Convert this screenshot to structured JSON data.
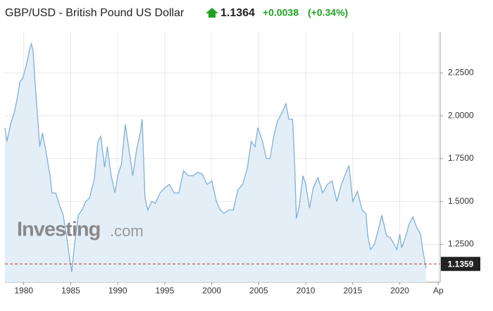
{
  "header": {
    "title": "GBP/USD - British Pound US Dollar",
    "price": "1.1364",
    "change": "+0.0038",
    "change_pct": "(+0.34%)"
  },
  "watermark": {
    "brand": "Investing",
    "suffix": ".com"
  },
  "chart_data": {
    "type": "line",
    "color": "#7fb0d8",
    "fill": "#e4eef7",
    "x": [
      1978.0,
      1978.2,
      1978.6,
      1979.0,
      1979.3,
      1979.6,
      1979.9,
      1980.3,
      1980.6,
      1980.8,
      1981.0,
      1981.2,
      1981.4,
      1981.7,
      1982.0,
      1982.4,
      1982.8,
      1983.0,
      1983.4,
      1983.8,
      1984.2,
      1984.6,
      1984.9,
      1985.1,
      1985.4,
      1985.8,
      1986.2,
      1986.6,
      1987.0,
      1987.5,
      1987.9,
      1988.2,
      1988.6,
      1988.9,
      1989.3,
      1989.7,
      1990.0,
      1990.4,
      1990.8,
      1991.2,
      1991.6,
      1992.0,
      1992.4,
      1992.6,
      1992.9,
      1993.2,
      1993.6,
      1994.0,
      1994.5,
      1995.0,
      1995.5,
      1996.0,
      1996.5,
      1997.0,
      1997.5,
      1998.0,
      1998.5,
      1999.0,
      1999.5,
      2000.0,
      2000.5,
      2000.9,
      2001.3,
      2001.8,
      2002.3,
      2002.8,
      2003.3,
      2003.8,
      2004.2,
      2004.6,
      2004.9,
      2005.4,
      2005.8,
      2006.2,
      2006.6,
      2007.0,
      2007.5,
      2007.9,
      2008.2,
      2008.6,
      2008.8,
      2009.0,
      2009.3,
      2009.7,
      2010.0,
      2010.4,
      2010.8,
      2011.3,
      2011.8,
      2012.3,
      2012.8,
      2013.3,
      2013.8,
      2014.3,
      2014.6,
      2015.0,
      2015.5,
      2016.0,
      2016.4,
      2016.6,
      2016.9,
      2017.3,
      2017.7,
      2018.1,
      2018.6,
      2019.0,
      2019.4,
      2019.7,
      2020.0,
      2020.2,
      2020.6,
      2021.0,
      2021.4,
      2021.8,
      2022.2,
      2022.5,
      2022.8
    ],
    "values": [
      1.93,
      1.85,
      1.95,
      2.02,
      2.1,
      2.2,
      2.22,
      2.3,
      2.38,
      2.42,
      2.38,
      2.2,
      2.05,
      1.82,
      1.9,
      1.78,
      1.65,
      1.55,
      1.55,
      1.48,
      1.42,
      1.28,
      1.16,
      1.09,
      1.25,
      1.42,
      1.45,
      1.5,
      1.52,
      1.63,
      1.85,
      1.88,
      1.7,
      1.82,
      1.65,
      1.55,
      1.65,
      1.72,
      1.95,
      1.8,
      1.65,
      1.8,
      1.9,
      1.98,
      1.52,
      1.45,
      1.5,
      1.49,
      1.55,
      1.58,
      1.6,
      1.55,
      1.55,
      1.68,
      1.65,
      1.65,
      1.67,
      1.66,
      1.6,
      1.62,
      1.5,
      1.45,
      1.43,
      1.45,
      1.45,
      1.57,
      1.6,
      1.7,
      1.85,
      1.82,
      1.93,
      1.85,
      1.75,
      1.75,
      1.88,
      1.97,
      2.02,
      2.07,
      1.98,
      1.98,
      1.75,
      1.4,
      1.47,
      1.65,
      1.6,
      1.46,
      1.58,
      1.64,
      1.55,
      1.6,
      1.62,
      1.5,
      1.6,
      1.67,
      1.71,
      1.5,
      1.56,
      1.45,
      1.43,
      1.3,
      1.22,
      1.25,
      1.33,
      1.42,
      1.3,
      1.29,
      1.25,
      1.22,
      1.31,
      1.23,
      1.29,
      1.37,
      1.41,
      1.35,
      1.31,
      1.2,
      1.11
    ],
    "xlim": [
      1978,
      2024.3
    ],
    "ylim": [
      1.03,
      2.49
    ],
    "xticks": [
      1980,
      1985,
      1990,
      1995,
      2000,
      2005,
      2010,
      2015,
      2020,
      {
        "value": 2024.1,
        "label": "Ap"
      }
    ],
    "yticks": [
      {
        "value": 1.25,
        "label": "1.2500"
      },
      {
        "value": 1.5,
        "label": "1.5000"
      },
      {
        "value": 1.75,
        "label": "1.7500"
      },
      {
        "value": 2.0,
        "label": "2.0000"
      },
      {
        "value": 2.25,
        "label": "2.2500"
      }
    ],
    "grid": true,
    "last_value": 1.1359,
    "last_color": "#c0392b"
  }
}
